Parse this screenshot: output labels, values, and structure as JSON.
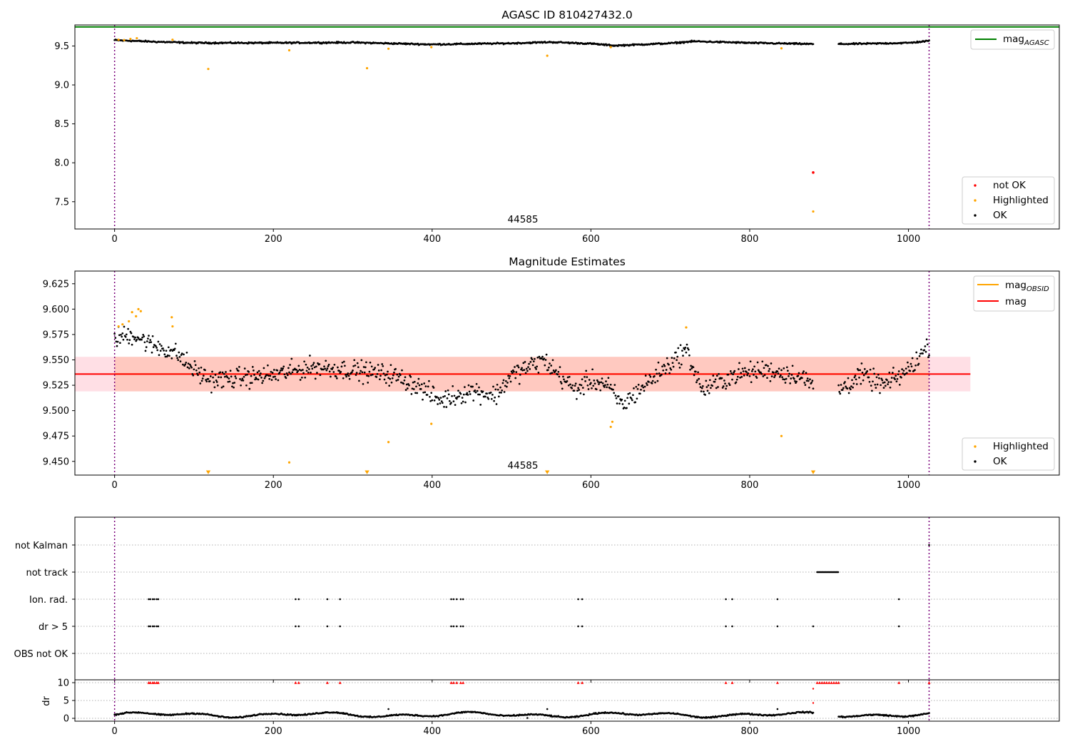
{
  "colors": {
    "ok": "#000000",
    "highlighted": "#ffa500",
    "not_ok": "#ff0000",
    "agasc_line": "#008000",
    "mag_line": "#ff0000",
    "mag_obsid_line": "#ffa500",
    "band_outer": "#ffc0cb",
    "band_inner": "#ffa07a",
    "obs_marker": "#7a007a"
  },
  "chart_data": [
    {
      "type": "scatter",
      "title": "AGASC ID 810427432.0",
      "xlim": [
        -50,
        1190
      ],
      "ylim": [
        7.15,
        9.77
      ],
      "xticks": [
        0,
        200,
        400,
        600,
        800,
        1000
      ],
      "xtick_labels": [
        "0",
        "200",
        "400",
        "600",
        "800",
        "1000"
      ],
      "yticks": [
        7.5,
        8.0,
        8.5,
        9.0,
        9.5
      ],
      "ytick_labels": [
        "7.5",
        "8.0",
        "8.5",
        "9.0",
        "9.5"
      ],
      "grid": false,
      "obsid_boundaries": [
        0,
        1026
      ],
      "obsid_label": {
        "x": 513,
        "text": "44585"
      },
      "reference_lines": [
        {
          "name": "mag_AGASC",
          "y": 9.745,
          "x_start": -50,
          "x_end": 1190
        }
      ],
      "legend_upper": {
        "placement": "top-right",
        "entries": [
          {
            "label": "mag",
            "subscript": "AGASC",
            "kind": "line",
            "color_key": "agasc_line"
          }
        ]
      },
      "legend_lower": {
        "placement": "bottom-right",
        "entries": [
          {
            "label": "not OK",
            "kind": "dot",
            "color_key": "not_ok"
          },
          {
            "label": "Highlighted",
            "kind": "dot",
            "color_key": "highlighted"
          },
          {
            "label": "OK",
            "kind": "dot",
            "color_key": "ok"
          }
        ]
      },
      "ok_series": {
        "gap": [
          880,
          912
        ],
        "x_end": 1026,
        "profile": [
          [
            0,
            9.575
          ],
          [
            50,
            9.555
          ],
          [
            100,
            9.54
          ],
          [
            200,
            9.54
          ],
          [
            300,
            9.545
          ],
          [
            400,
            9.52
          ],
          [
            500,
            9.535
          ],
          [
            550,
            9.55
          ],
          [
            600,
            9.53
          ],
          [
            630,
            9.505
          ],
          [
            700,
            9.535
          ],
          [
            730,
            9.56
          ],
          [
            800,
            9.54
          ],
          [
            880,
            9.525
          ],
          [
            912,
            9.525
          ],
          [
            950,
            9.53
          ],
          [
            1000,
            9.54
          ],
          [
            1026,
            9.565
          ]
        ]
      },
      "highlighted_points": [
        [
          5,
          9.58
        ],
        [
          12,
          9.575
        ],
        [
          20,
          9.59
        ],
        [
          28,
          9.6
        ],
        [
          73,
          9.58
        ],
        [
          118,
          9.205
        ],
        [
          220,
          9.445
        ],
        [
          318,
          9.215
        ],
        [
          345,
          9.465
        ],
        [
          399,
          9.485
        ],
        [
          545,
          9.375
        ],
        [
          625,
          9.485
        ],
        [
          840,
          9.47
        ],
        [
          880,
          7.375
        ]
      ],
      "not_ok_points": [
        [
          880,
          7.875
        ]
      ]
    },
    {
      "type": "scatter",
      "title": "Magnitude Estimates",
      "xlim": [
        -50,
        1190
      ],
      "ylim": [
        9.4365,
        9.6375
      ],
      "xticks": [
        0,
        200,
        400,
        600,
        800,
        1000
      ],
      "xtick_labels": [
        "0",
        "200",
        "400",
        "600",
        "800",
        "1000"
      ],
      "yticks": [
        9.45,
        9.475,
        9.5,
        9.525,
        9.55,
        9.575,
        9.6,
        9.625
      ],
      "ytick_labels": [
        "9.450",
        "9.475",
        "9.500",
        "9.525",
        "9.550",
        "9.575",
        "9.600",
        "9.625"
      ],
      "grid": false,
      "obsid_boundaries": [
        0,
        1026
      ],
      "obsid_label": {
        "x": 513,
        "text": "44585"
      },
      "mag": 9.536,
      "mag_band": {
        "low": 9.519,
        "high": 9.553,
        "x_start": -50,
        "x_end": 1078
      },
      "mag_obsid": 9.536,
      "mag_obsid_band": {
        "low": 9.519,
        "high": 9.553,
        "x_start": 0,
        "x_end": 1026
      },
      "legend_upper": {
        "placement": "top-right",
        "entries": [
          {
            "label": "mag",
            "subscript": "OBSID",
            "kind": "line",
            "color_key": "mag_obsid_line"
          },
          {
            "label": "mag",
            "subscript": "",
            "kind": "line",
            "color_key": "mag_line"
          }
        ]
      },
      "legend_lower": {
        "placement": "bottom-right",
        "entries": [
          {
            "label": "Highlighted",
            "kind": "dot",
            "color_key": "highlighted"
          },
          {
            "label": "OK",
            "kind": "dot",
            "color_key": "ok"
          }
        ]
      },
      "ok_series": {
        "gap": [
          880,
          912
        ],
        "x_end": 1026,
        "profile": [
          [
            0,
            9.572
          ],
          [
            25,
            9.575
          ],
          [
            45,
            9.565
          ],
          [
            60,
            9.562
          ],
          [
            80,
            9.555
          ],
          [
            100,
            9.54
          ],
          [
            120,
            9.53
          ],
          [
            200,
            9.535
          ],
          [
            250,
            9.543
          ],
          [
            300,
            9.54
          ],
          [
            350,
            9.535
          ],
          [
            380,
            9.525
          ],
          [
            410,
            9.51
          ],
          [
            450,
            9.52
          ],
          [
            480,
            9.515
          ],
          [
            500,
            9.535
          ],
          [
            540,
            9.55
          ],
          [
            560,
            9.535
          ],
          [
            580,
            9.52
          ],
          [
            600,
            9.53
          ],
          [
            620,
            9.525
          ],
          [
            640,
            9.505
          ],
          [
            660,
            9.52
          ],
          [
            690,
            9.54
          ],
          [
            720,
            9.56
          ],
          [
            740,
            9.52
          ],
          [
            780,
            9.535
          ],
          [
            820,
            9.54
          ],
          [
            860,
            9.535
          ],
          [
            880,
            9.525
          ],
          [
            912,
            9.52
          ],
          [
            940,
            9.535
          ],
          [
            970,
            9.525
          ],
          [
            1000,
            9.54
          ],
          [
            1026,
            9.565
          ]
        ]
      },
      "highlighted_points": [
        [
          5,
          9.583
        ],
        [
          10,
          9.585
        ],
        [
          18,
          9.588
        ],
        [
          22,
          9.597
        ],
        [
          27,
          9.593
        ],
        [
          30,
          9.6
        ],
        [
          33,
          9.598
        ],
        [
          72,
          9.592
        ],
        [
          73,
          9.583
        ],
        [
          220,
          9.449
        ],
        [
          345,
          9.469
        ],
        [
          399,
          9.487
        ],
        [
          625,
          9.484
        ],
        [
          627,
          9.489
        ],
        [
          720,
          9.582
        ],
        [
          840,
          9.475
        ]
      ],
      "low_limit_markers": [
        118,
        318,
        545,
        880
      ]
    },
    {
      "type": "scatter",
      "title": "",
      "xlim": [
        -50,
        1190
      ],
      "xticks": [
        0,
        200,
        400,
        600,
        800,
        1000
      ],
      "xtick_labels": [
        "0",
        "200",
        "400",
        "600",
        "800",
        "1000"
      ],
      "obsid_boundaries": [
        0,
        1026
      ],
      "flag_rows": [
        {
          "label": "not Kalman",
          "x": [
            1026
          ]
        },
        {
          "label": "not track",
          "x_ranges": [
            [
              885,
              912
            ]
          ]
        },
        {
          "label": "Ion. rad.",
          "x": [
            43,
            45,
            48,
            50,
            53,
            55,
            228,
            232,
            268,
            284,
            424,
            427,
            431,
            436,
            439,
            584,
            589,
            770,
            778,
            835,
            988
          ]
        },
        {
          "label": "dr > 5",
          "x": [
            43,
            45,
            48,
            50,
            53,
            55,
            228,
            232,
            268,
            284,
            424,
            427,
            431,
            436,
            439,
            584,
            589,
            770,
            778,
            835,
            880,
            988
          ]
        },
        {
          "label": "OBS not OK",
          "x": []
        }
      ],
      "dr_panel": {
        "ylabel": "dr",
        "ylim": [
          -0.8,
          10.8
        ],
        "yticks": [
          0,
          5,
          10
        ],
        "ytick_labels": [
          "0",
          "5",
          "10"
        ],
        "clip_value": 10,
        "clipped_x": [
          43,
          45,
          48,
          50,
          53,
          55,
          228,
          232,
          268,
          284,
          424,
          427,
          431,
          436,
          439,
          584,
          589,
          770,
          778,
          835,
          885,
          888,
          891,
          894,
          897,
          900,
          903,
          906,
          909,
          912,
          988,
          1026
        ],
        "extra_red_points": [
          [
            880,
            8.3
          ],
          [
            880,
            4.3
          ]
        ],
        "ok_series": {
          "gap": [
            880,
            912
          ],
          "x_end": 1026,
          "base": 1.0,
          "amplitude": 0.8
        },
        "spikes": [
          [
            345,
            2.6
          ],
          [
            545,
            2.6
          ],
          [
            835,
            2.6
          ],
          [
            520,
            0.1
          ]
        ]
      }
    }
  ]
}
